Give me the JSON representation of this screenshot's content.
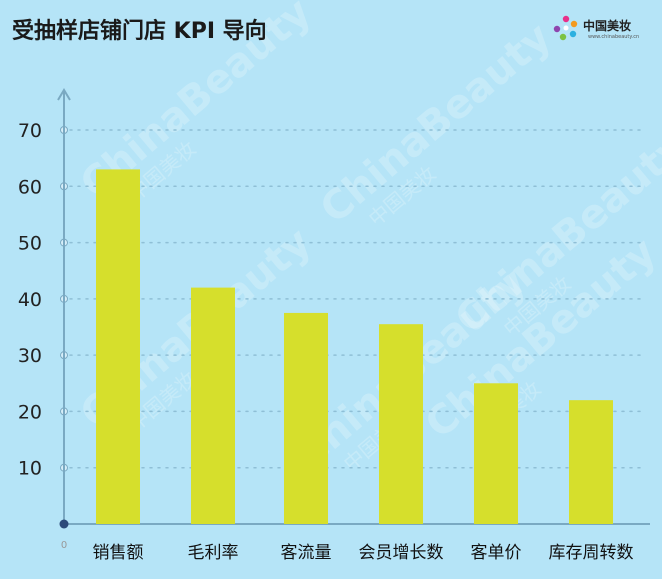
{
  "brand": {
    "name": "中国美妆",
    "url": "www.chinabeauty.cn",
    "watermark": "ChinaBeauty",
    "watermark_cn": "中国美妆",
    "icon": "star-burst-logo-icon"
  },
  "colors": {
    "background": "#b5e4f7",
    "bar": "#d6df2c",
    "axis": "#7aa9c2",
    "grid": "#8fbfd6"
  },
  "chart_data": {
    "type": "bar",
    "title": "受抽样店铺门店 KPI 导向",
    "categories": [
      "销售额",
      "毛利率",
      "客流量",
      "会员增长数",
      "客单价",
      "库存周转数"
    ],
    "values": [
      63,
      42,
      37.5,
      35.5,
      25,
      22
    ],
    "ylim": [
      0,
      70
    ],
    "yticks": [
      10,
      20,
      30,
      40,
      50,
      60,
      70
    ],
    "origin_label": "0",
    "xlabel": "",
    "ylabel": "",
    "grid": true,
    "legend": "none"
  }
}
